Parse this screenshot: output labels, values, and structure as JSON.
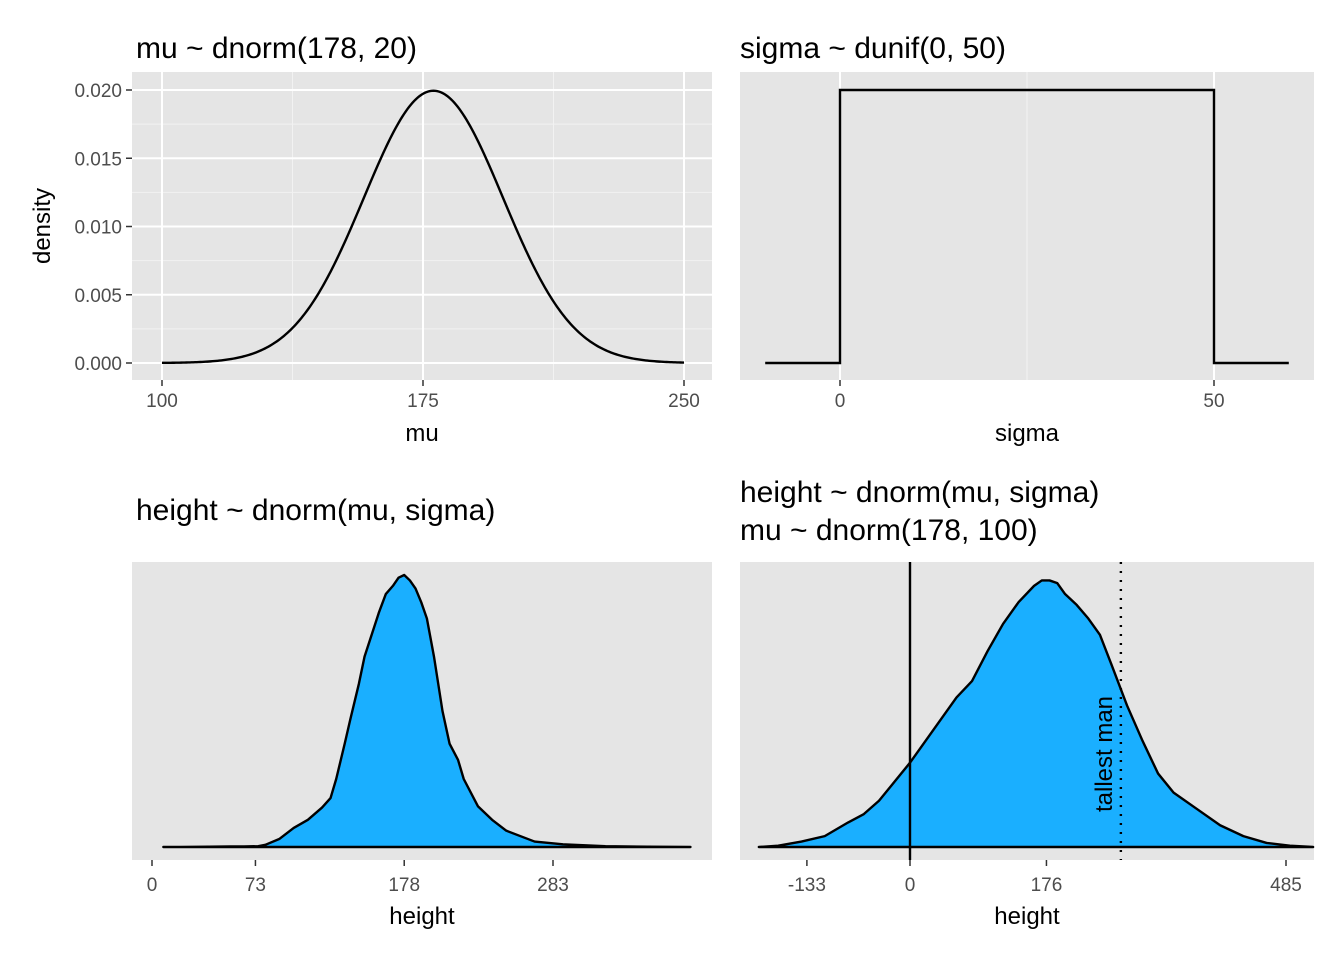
{
  "colors": {
    "panel_bg": "#e5e5e5",
    "grid": "#ffffff",
    "fill": "#1aafff",
    "line": "#000000",
    "tick_text": "#4d4d4d"
  },
  "chart_data": [
    {
      "type": "line",
      "title": "mu ~ dnorm(178, 20)",
      "xlabel": "mu",
      "ylabel": "density",
      "xlim": [
        100,
        250
      ],
      "ylim": [
        0,
        0.02
      ],
      "x_ticks": [
        100,
        175,
        250
      ],
      "y_ticks": [
        0.0,
        0.005,
        0.01,
        0.015,
        0.02
      ],
      "y_tick_labels": [
        "0.000",
        "0.005",
        "0.010",
        "0.015",
        "0.020"
      ],
      "distribution": {
        "family": "normal",
        "mean": 178,
        "sd": 20
      },
      "grid": true
    },
    {
      "type": "line",
      "title": "sigma ~ dunif(0, 50)",
      "xlabel": "sigma",
      "xlim": [
        -10,
        60
      ],
      "ylim": [
        0,
        0.02
      ],
      "x_ticks": [
        0,
        50
      ],
      "x": [
        -10,
        0,
        0,
        50,
        50,
        60
      ],
      "y": [
        0,
        0,
        0.02,
        0.02,
        0,
        0
      ],
      "grid": true
    },
    {
      "type": "area",
      "title": "height ~ dnorm(mu, sigma)",
      "xlabel": "height",
      "xlim": [
        0,
        380
      ],
      "x_ticks": [
        0,
        73,
        178,
        283
      ],
      "x": [
        8,
        20,
        40,
        55,
        65,
        75,
        80,
        90,
        100,
        110,
        120,
        126,
        130,
        136,
        140,
        146,
        150,
        155,
        160,
        165,
        170,
        174,
        178,
        182,
        186,
        190,
        194,
        199,
        205,
        210,
        216,
        220,
        230,
        240,
        250,
        270,
        290,
        320,
        350,
        380
      ],
      "y": [
        0,
        0,
        0.001,
        0.002,
        0.002,
        0.003,
        0.008,
        0.03,
        0.07,
        0.1,
        0.145,
        0.18,
        0.25,
        0.38,
        0.47,
        0.6,
        0.7,
        0.78,
        0.86,
        0.93,
        0.96,
        0.99,
        1.0,
        0.98,
        0.95,
        0.9,
        0.84,
        0.7,
        0.5,
        0.38,
        0.32,
        0.25,
        0.15,
        0.1,
        0.06,
        0.02,
        0.01,
        0.003,
        0.001,
        0
      ]
    },
    {
      "type": "area",
      "title_lines": [
        "height ~ dnorm(mu, sigma)",
        "mu ~ dnorm(178, 100)"
      ],
      "xlabel": "height",
      "xlim": [
        -200,
        530
      ],
      "x_ticks": [
        -133,
        0,
        176,
        485
      ],
      "x": [
        -195,
        -170,
        -140,
        -110,
        -80,
        -60,
        -40,
        -20,
        0,
        20,
        40,
        60,
        80,
        100,
        120,
        140,
        160,
        170,
        180,
        190,
        200,
        215,
        230,
        245,
        260,
        280,
        300,
        320,
        340,
        370,
        400,
        430,
        460,
        490,
        520
      ],
      "y": [
        0,
        0.005,
        0.02,
        0.04,
        0.09,
        0.12,
        0.17,
        0.24,
        0.31,
        0.39,
        0.47,
        0.55,
        0.61,
        0.72,
        0.82,
        0.9,
        0.96,
        0.98,
        0.98,
        0.97,
        0.93,
        0.89,
        0.84,
        0.78,
        0.67,
        0.52,
        0.39,
        0.27,
        0.2,
        0.14,
        0.08,
        0.04,
        0.015,
        0.005,
        0
      ],
      "vline_solid": 0,
      "vline_dotted": 272,
      "annotation": "tallest man"
    }
  ]
}
